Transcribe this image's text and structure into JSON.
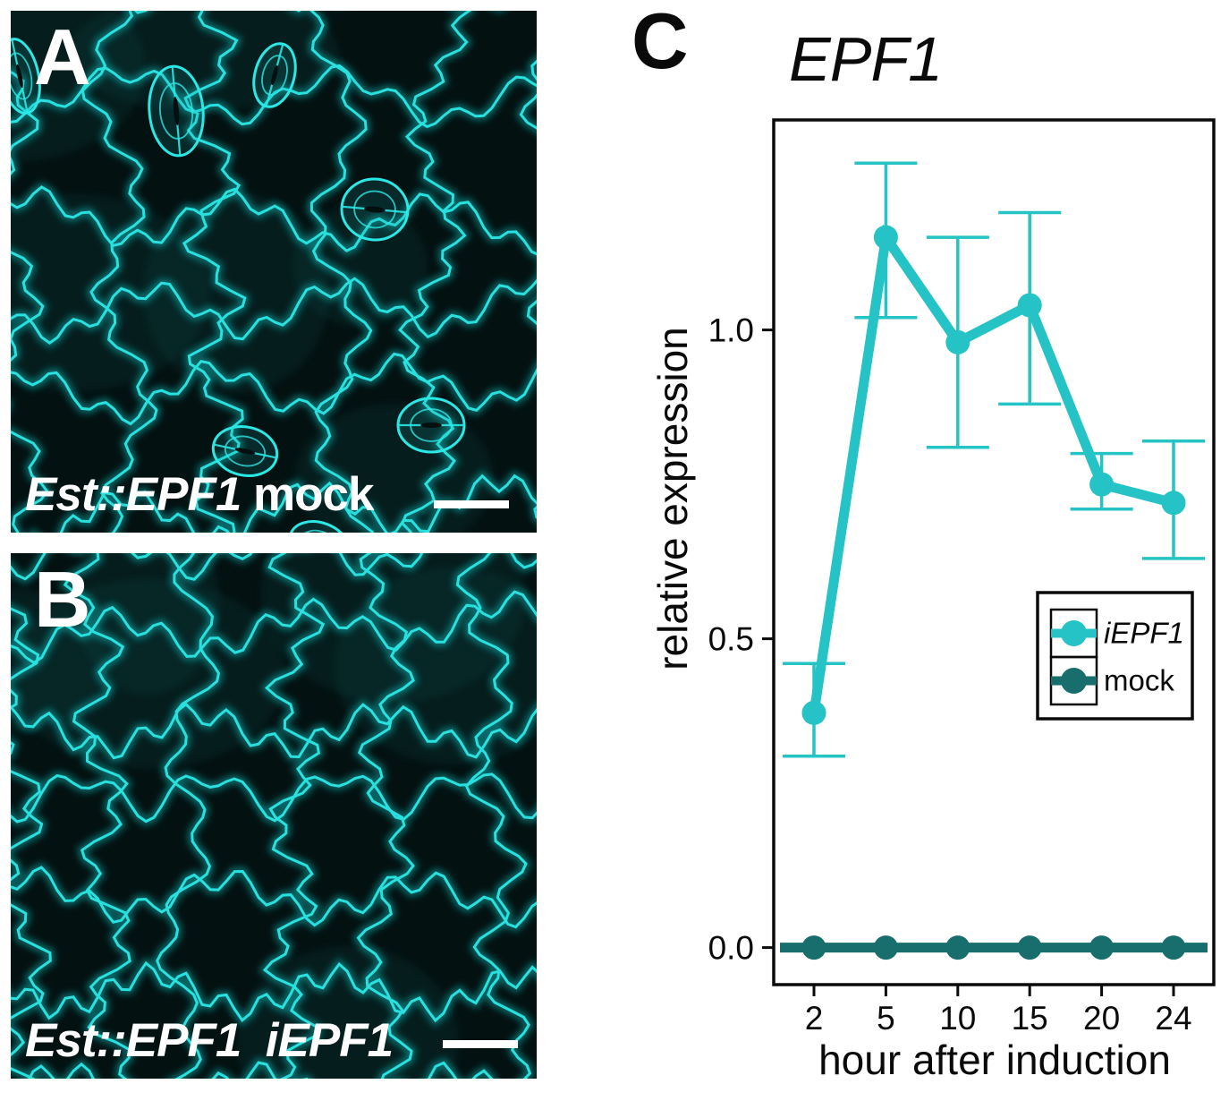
{
  "panels": [
    {
      "letter": "A",
      "caption": [
        {
          "text": "Est::EPF1",
          "italic": true
        },
        {
          "text": " mock",
          "italic": false
        }
      ]
    },
    {
      "letter": "B",
      "caption": [
        {
          "text": "Est::EPF1",
          "italic": true
        },
        {
          "text": "  iEPF1",
          "italic": true
        }
      ]
    }
  ],
  "panel_c_letter": "C",
  "colors": {
    "iEPF1": "#25C3C5",
    "mock": "#176E6C",
    "micrograph_signal": "#2AE8E6",
    "axis": "#0a0a0a"
  },
  "chart_data": {
    "type": "line",
    "title": "EPF1",
    "xlabel": "hour after induction",
    "ylabel": "relative expression",
    "categories": [
      2,
      5,
      10,
      15,
      20,
      24
    ],
    "x_tick_labels": [
      "2",
      "5",
      "10",
      "15",
      "20",
      "24"
    ],
    "y_ticks": [
      0.0,
      0.5,
      1.0
    ],
    "y_tick_labels": [
      "0.0",
      "0.5",
      "1.0"
    ],
    "ylim": [
      -0.06,
      1.34
    ],
    "grid": false,
    "legend_position": "inside-lower-right",
    "series": [
      {
        "name": "iEPF1",
        "color": "#25C3C5",
        "italic_label": true,
        "line_full_width": false,
        "values": [
          0.38,
          1.15,
          0.98,
          1.04,
          0.75,
          0.72
        ],
        "error_low": [
          0.31,
          1.02,
          0.81,
          0.88,
          0.71,
          0.63
        ],
        "error_high": [
          0.46,
          1.27,
          1.15,
          1.19,
          0.8,
          0.82
        ]
      },
      {
        "name": "mock",
        "color": "#176E6C",
        "italic_label": false,
        "line_full_width": true,
        "values": [
          0.0,
          0.0,
          0.0,
          0.0,
          0.0,
          0.0
        ],
        "error_low": [
          0.0,
          0.0,
          0.0,
          0.0,
          0.0,
          0.0
        ],
        "error_high": [
          0.0,
          0.0,
          0.0,
          0.0,
          0.0,
          0.0
        ]
      }
    ]
  }
}
